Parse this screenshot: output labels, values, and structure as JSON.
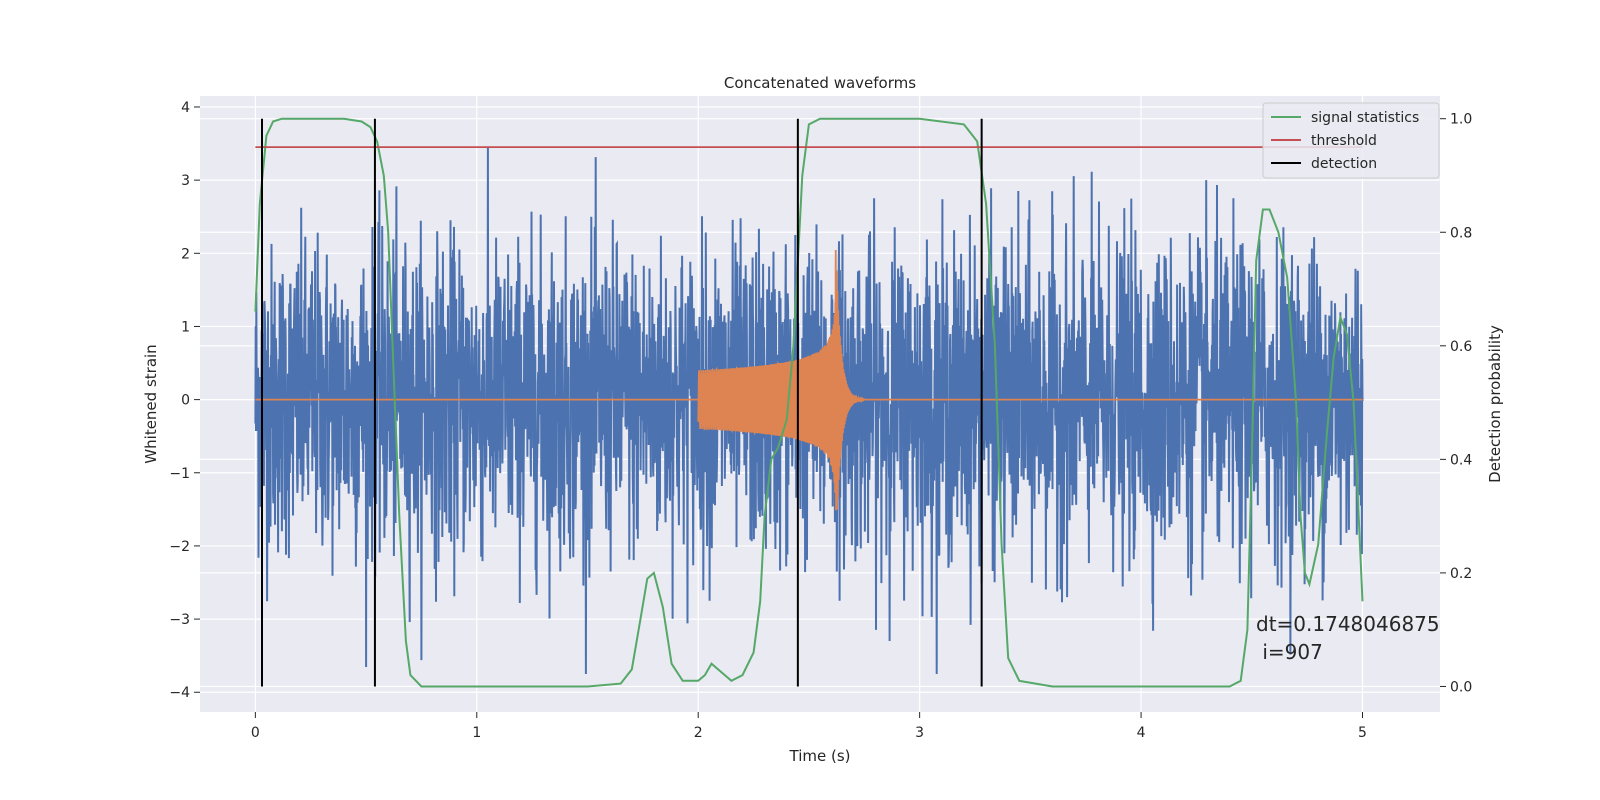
{
  "chart_data": {
    "type": "line",
    "title": "Concatenated waveforms",
    "xlabel": "Time (s)",
    "ylabel": "Whitened strain",
    "y2label": "Detection probability",
    "xlim": [
      -0.25,
      5.35
    ],
    "ylim": [
      -4.27,
      4.15
    ],
    "y2lim": [
      -0.045,
      1.04
    ],
    "xticks": [
      0,
      1,
      2,
      3,
      4,
      5
    ],
    "yticks": [
      -4,
      -3,
      -2,
      -1,
      0,
      1,
      2,
      3,
      4
    ],
    "y2ticks": [
      0.0,
      0.2,
      0.4,
      0.6,
      0.8,
      1.0
    ],
    "xtick_labels": [
      "0",
      "1",
      "2",
      "3",
      "4",
      "5"
    ],
    "ytick_labels": [
      "−4",
      "−3",
      "−2",
      "−1",
      "0",
      "1",
      "2",
      "3",
      "4"
    ],
    "y2tick_labels": [
      "0.0",
      "0.2",
      "0.4",
      "0.6",
      "0.8",
      "1.0"
    ],
    "grid": true,
    "legend_position": "top-right",
    "noise": {
      "axis": "left",
      "color": "#4c72b0",
      "x_range": [
        0,
        5
      ],
      "envelope_abs": 3.75,
      "dense_band_abs": 0.7
    },
    "chirp": {
      "axis": "left",
      "color": "#dd8452",
      "start": 2.0,
      "merger": 2.62,
      "end": 2.75,
      "start_amplitude": 0.4,
      "peak_positive": 2.2,
      "peak_negative": -1.5
    },
    "series": [
      {
        "name": "signal statistics",
        "axis": "right",
        "color": "#55a868",
        "x": [
          0.0,
          0.02,
          0.05,
          0.08,
          0.12,
          0.2,
          0.3,
          0.4,
          0.48,
          0.52,
          0.55,
          0.58,
          0.6,
          0.62,
          0.65,
          0.68,
          0.7,
          0.75,
          1.0,
          1.5,
          1.65,
          1.7,
          1.74,
          1.77,
          1.8,
          1.84,
          1.88,
          1.93,
          2.0,
          2.03,
          2.06,
          2.09,
          2.12,
          2.15,
          2.2,
          2.25,
          2.28,
          2.3,
          2.33,
          2.36,
          2.4,
          2.43,
          2.45,
          2.47,
          2.5,
          2.55,
          2.6,
          3.0,
          3.2,
          3.26,
          3.3,
          3.34,
          3.37,
          3.4,
          3.45,
          3.6,
          4.0,
          4.4,
          4.45,
          4.48,
          4.5,
          4.52,
          4.55,
          4.58,
          4.62,
          4.66,
          4.7,
          4.72,
          4.74,
          4.76,
          4.8,
          4.84,
          4.87,
          4.9,
          4.93,
          4.96,
          5.0
        ],
        "values": [
          0.66,
          0.85,
          0.97,
          0.995,
          1.0,
          1.0,
          1.0,
          1.0,
          0.995,
          0.985,
          0.96,
          0.9,
          0.8,
          0.6,
          0.3,
          0.08,
          0.02,
          0.0,
          0.0,
          0.0,
          0.005,
          0.03,
          0.12,
          0.19,
          0.2,
          0.14,
          0.04,
          0.01,
          0.01,
          0.02,
          0.04,
          0.03,
          0.02,
          0.01,
          0.02,
          0.06,
          0.15,
          0.3,
          0.4,
          0.42,
          0.47,
          0.6,
          0.75,
          0.9,
          0.99,
          1.0,
          1.0,
          1.0,
          0.99,
          0.96,
          0.85,
          0.6,
          0.25,
          0.05,
          0.01,
          0.0,
          0.0,
          0.0,
          0.01,
          0.1,
          0.4,
          0.75,
          0.84,
          0.84,
          0.8,
          0.72,
          0.5,
          0.3,
          0.2,
          0.18,
          0.25,
          0.45,
          0.58,
          0.65,
          0.62,
          0.5,
          0.15
        ]
      },
      {
        "name": "threshold",
        "axis": "right",
        "color": "#c44e52",
        "x": [
          0,
          5
        ],
        "values": [
          0.95,
          0.95
        ]
      },
      {
        "name": "detection",
        "axis": "right",
        "color": "#000000",
        "type": "vlines",
        "x": [
          0.03,
          0.54,
          2.45,
          3.28
        ],
        "ymin": 0,
        "ymax": 1
      }
    ],
    "annotation": [
      "dt=0.1748046875",
      " i=907"
    ]
  }
}
